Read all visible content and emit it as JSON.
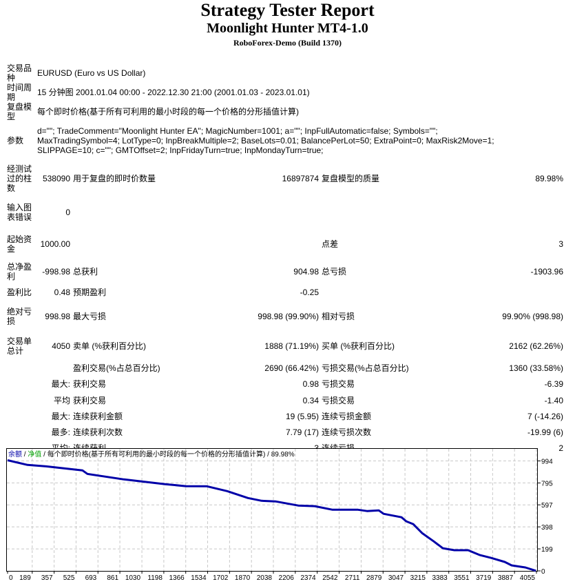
{
  "header": {
    "title": "Strategy Tester Report",
    "ea_name": "Moonlight Hunter MT4-1.0",
    "server": "RoboForex-Demo (Build 1370)"
  },
  "report": {
    "symbol": {
      "label": "交易品种",
      "value": "EURUSD (Euro vs US Dollar)"
    },
    "period": {
      "label": "时间周期",
      "value": "15 分钟图 2001.01.04 00:00 - 2022.12.30 21:00 (2001.01.03 - 2023.01.01)"
    },
    "model": {
      "label": "复盘模型",
      "value": "每个即时价格(基于所有可利用的最小时段的每一个价格的分形插值计算)"
    },
    "parameters": {
      "label": "参数",
      "lines": [
        "d=\"\"; TradeComment=\"Moonlight Hunter EA\"; MagicNumber=1001; a=\"\"; InpFullAutomatic=false; Symbols=\"\";",
        "MaxTradingSymbol=4; LotType=0; InpBreakMultiple=2; BaseLots=0.01; BalancePerLot=50; ExtraPoint=0; MaxRisk2Move=1;",
        "SLIPPAGE=10; c=\"\"; GMTOffset=2; InpFridayTurn=true; InpMondayTurn=true;"
      ]
    },
    "stats": [
      [
        "经测试过的柱数",
        "538090",
        "用于复盘的即时价数量",
        "16897874",
        "复盘模型的质量",
        "89.98%"
      ],
      [
        "输入图表错误",
        "0",
        "",
        "",
        "",
        ""
      ],
      [
        "起始资金",
        "1000.00",
        "",
        "",
        "点差",
        "3"
      ],
      [
        "总净盈利",
        "-998.98",
        "总获利",
        "904.98",
        "总亏损",
        "-1903.96"
      ],
      [
        "盈利比",
        "0.48",
        "预期盈利",
        "-0.25",
        "",
        ""
      ],
      [
        "绝对亏损",
        "998.98",
        "最大亏损",
        "998.98 (99.90%)",
        "相对亏损",
        "99.90% (998.98)"
      ],
      [
        "交易单总计",
        "4050",
        "卖单 (%获利百分比)",
        "1888 (71.19%)",
        "买单 (%获利百分比)",
        "2162 (62.26%)"
      ],
      [
        "",
        "",
        "盈利交易(%占总百分比)",
        "2690 (66.42%)",
        "亏损交易(%占总百分比)",
        "1360 (33.58%)"
      ],
      [
        "",
        "最大:",
        "获利交易",
        "0.98",
        "亏损交易",
        "-6.39"
      ],
      [
        "",
        "平均",
        "获利交易",
        "0.34",
        "亏损交易",
        "-1.40"
      ],
      [
        "",
        "最大:",
        "连续获利金额",
        "19 (5.95)",
        "连续亏损金额",
        "7 (-14.26)"
      ],
      [
        "",
        "最多:",
        "连续获利次数",
        "7.79 (17)",
        "连续亏损次数",
        "-19.99 (6)"
      ],
      [
        "",
        "平均:",
        "连续获利",
        "3",
        "连续亏损",
        "2"
      ]
    ]
  },
  "chart_data": {
    "type": "line",
    "legend": {
      "balance": "余额",
      "equity": "净值",
      "model": "每个即时价格(基于所有可利用的最小时段的每一个价格的分形插值计算)",
      "quality": "89.98%",
      "separator": "/"
    },
    "colors": {
      "balance": "#0000a8",
      "equity": "#00a000",
      "grid": "#c8c8c8"
    },
    "xlabel": "",
    "ylabel": "",
    "xticks": [
      0,
      189,
      357,
      525,
      693,
      861,
      1030,
      1198,
      1366,
      1534,
      1702,
      1870,
      2038,
      2206,
      2374,
      2542,
      2711,
      2879,
      3047,
      3215,
      3383,
      3551,
      3719,
      3887,
      4055
    ],
    "yticks": [
      0,
      199,
      398,
      597,
      795,
      994
    ],
    "xlim": [
      0,
      4055
    ],
    "ylim": [
      0,
      994
    ],
    "series": [
      {
        "name": "余额",
        "x": [
          0,
          153,
          296,
          575,
          612,
          892,
          1209,
          1366,
          1526,
          1684,
          1843,
          1948,
          2054,
          2228,
          2355,
          2492,
          2687,
          2756,
          2846,
          2883,
          3020,
          3057,
          3110,
          3178,
          3268,
          3337,
          3426,
          3532,
          3569,
          3622,
          3706,
          3812,
          3865,
          3970,
          4050
        ],
        "y": [
          1000,
          958,
          945,
          908,
          877,
          827,
          784,
          766,
          765,
          721,
          659,
          634,
          628,
          591,
          585,
          553,
          553,
          541,
          547,
          516,
          485,
          448,
          423,
          342,
          267,
          205,
          187,
          187,
          168,
          143,
          118,
          81,
          50,
          31,
          1
        ]
      }
    ]
  }
}
